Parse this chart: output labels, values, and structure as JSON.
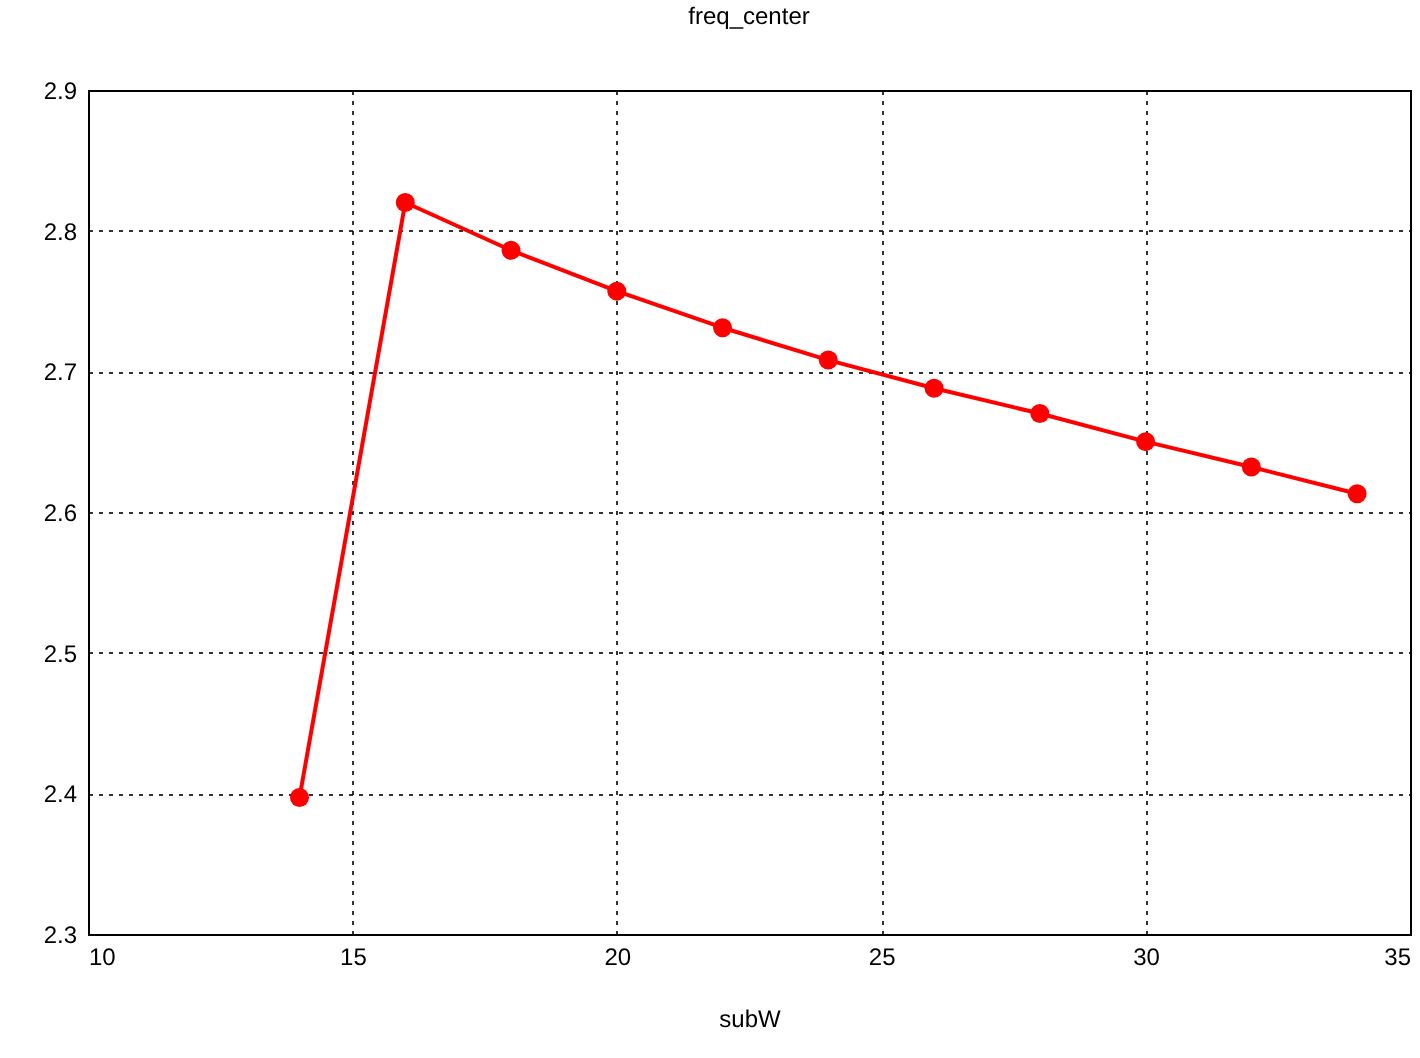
{
  "chart_data": {
    "type": "line",
    "title": "freq_center",
    "xlabel": "subW",
    "x": [
      14,
      16,
      18,
      20,
      22,
      24,
      26,
      28,
      30,
      32,
      34
    ],
    "series": [
      {
        "color": "#ff0000",
        "values": [
          2.397,
          2.82,
          2.786,
          2.757,
          2.731,
          2.708,
          2.688,
          2.67,
          2.65,
          2.632,
          2.613
        ]
      }
    ],
    "xlim": [
      10,
      35
    ],
    "xticks": [
      10,
      15,
      20,
      25,
      30,
      35
    ],
    "ylim": [
      2.3,
      2.9
    ],
    "yticks": [
      2.3,
      2.4,
      2.5,
      2.6,
      2.7,
      2.8,
      2.9
    ],
    "grid": true,
    "marker": "circle",
    "line_style": "solid",
    "legend": false
  }
}
